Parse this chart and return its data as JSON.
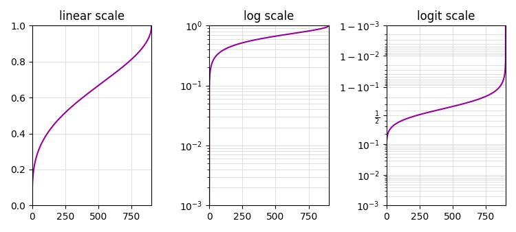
{
  "title_linear": "linear scale",
  "title_log": "log scale",
  "title_logit": "logit scale",
  "line_color": "#990099",
  "line_width": 1.5,
  "figsize": [
    7.5,
    3.38
  ],
  "dpi": 100,
  "N": 1000,
  "x_max": 900,
  "x_ticks": [
    0,
    250,
    500,
    750
  ],
  "ylim_log": [
    0.001,
    1.0
  ],
  "ylim_linear": [
    0.0,
    1.0
  ],
  "yticks_linear": [
    0.0,
    0.2,
    0.4,
    0.6,
    0.8,
    1.0
  ]
}
